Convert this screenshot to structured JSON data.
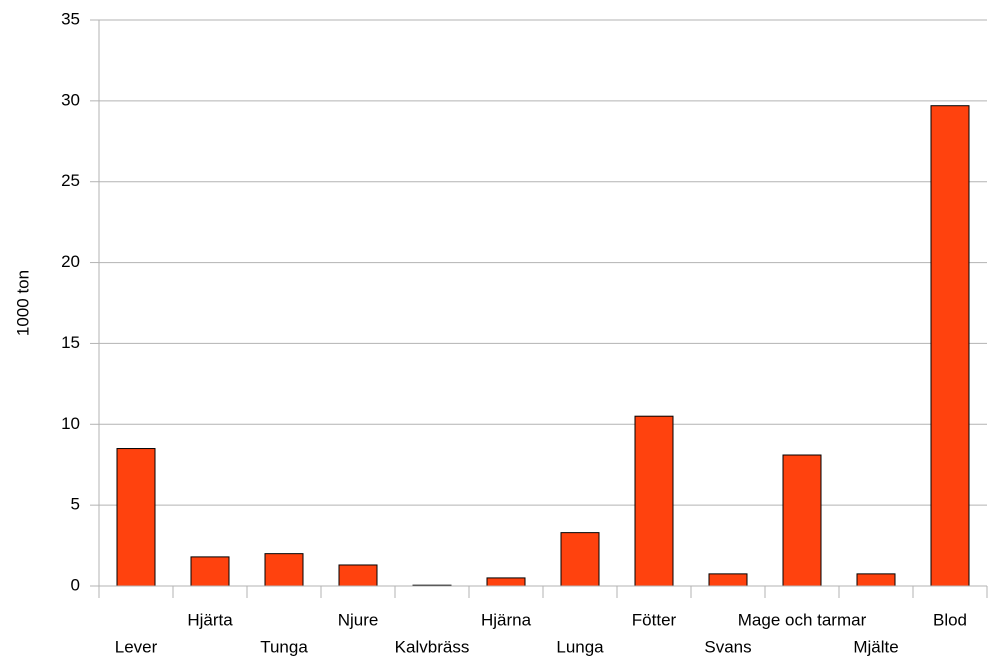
{
  "chart_data": {
    "type": "bar",
    "y_label": "1000 ton",
    "categories": [
      "Lever",
      "Hjärta",
      "Tunga",
      "Njure",
      "Kalvbräss",
      "Hjärna",
      "Lunga",
      "Fötter",
      "Svans",
      "Mage och tarmar",
      "Mjälte",
      "Blod"
    ],
    "values": [
      8.5,
      1.8,
      2.0,
      1.3,
      0.05,
      0.5,
      3.3,
      10.5,
      0.75,
      8.1,
      0.75,
      29.7
    ],
    "color": "#ff420e",
    "ylim": [
      0,
      35
    ],
    "yticks": [
      0,
      5,
      10,
      15,
      20,
      25,
      30,
      35
    ],
    "grid": true
  }
}
